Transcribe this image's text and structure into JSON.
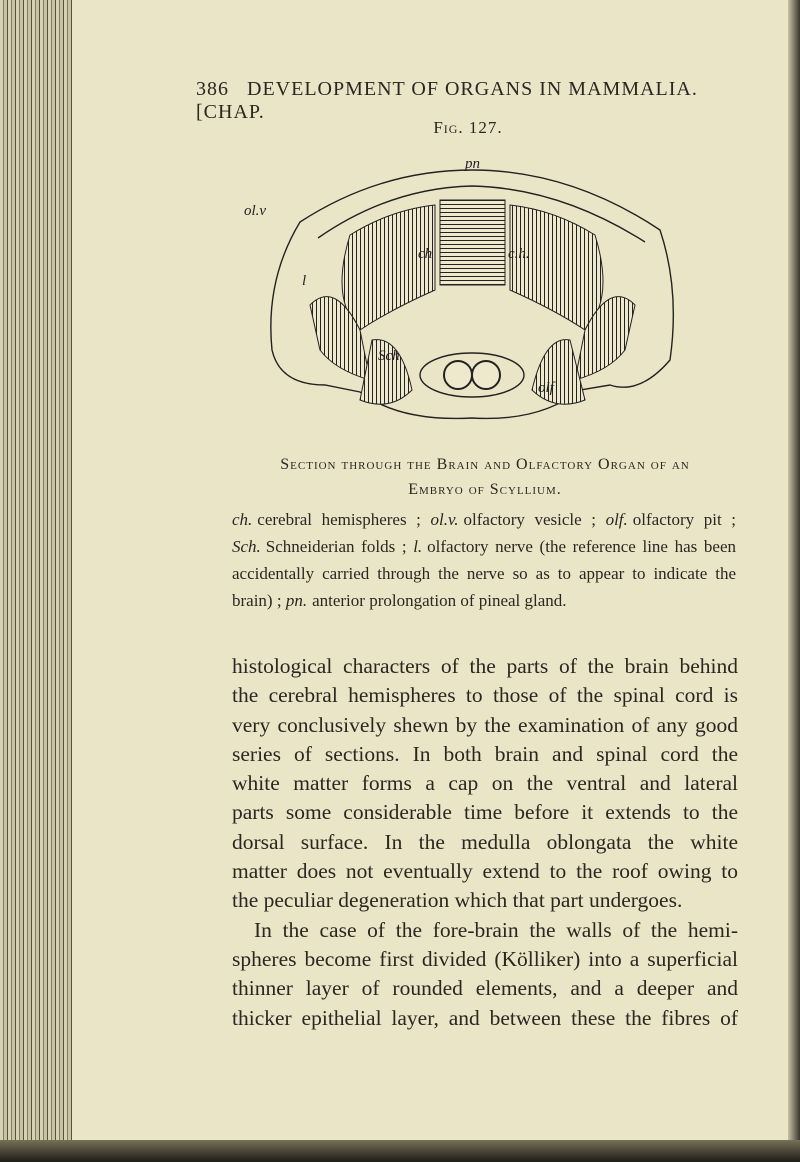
{
  "header": {
    "page_number": "386",
    "title": "DEVELOPMENT OF ORGANS IN MAMMALIA.",
    "chapter": "[CHAP."
  },
  "figure": {
    "label": "Fig. 127.",
    "labels": {
      "pn": "pn",
      "olv": "ol.v",
      "l": "l",
      "ch_left": "ch",
      "ch_right": "c.h.",
      "sch": "Sch",
      "olf": "olf"
    },
    "caption": [
      "Section through the Brain and Olfactory Organ of an",
      "Embryo of Scyllium."
    ],
    "legend": [
      {
        "abbr": "ch.",
        "desc": "cerebral hemispheres ;"
      },
      {
        "abbr": "ol.v.",
        "desc": "olfactory vesicle ;"
      },
      {
        "abbr": "olf.",
        "desc": "olfactory pit ;"
      },
      {
        "abbr": "Sch.",
        "desc": "Schneiderian folds ;"
      },
      {
        "abbr": "l.",
        "desc": "olfactory nerve (the reference line has been accidentally carried through the nerve so as to appear to indicate the brain) ;"
      },
      {
        "abbr": "pn.",
        "desc": "anterior prolongation of pineal gland."
      }
    ]
  },
  "body": {
    "paragraphs": [
      {
        "lines": [
          "histological characters of the parts of the brain behind",
          "the cerebral hemispheres to those of the spinal cord is",
          "very conclusively shewn by the examination of any good",
          "series of sections. In both brain and spinal cord the",
          "white matter forms a cap on the ventral and lateral",
          "parts some considerable time before it extends to the",
          "dorsal surface. In the medulla oblongata the white",
          "matter does not eventually extend to the roof owing to",
          "the peculiar degeneration which that part undergoes."
        ]
      },
      {
        "lines": [
          "In the case of the fore-brain the walls of the hemi-",
          "spheres become first divided (Kölliker) into a superficial",
          "thinner layer of rounded elements, and a deeper and",
          "thicker epithelial layer, and between these the fibres of"
        ]
      }
    ]
  }
}
